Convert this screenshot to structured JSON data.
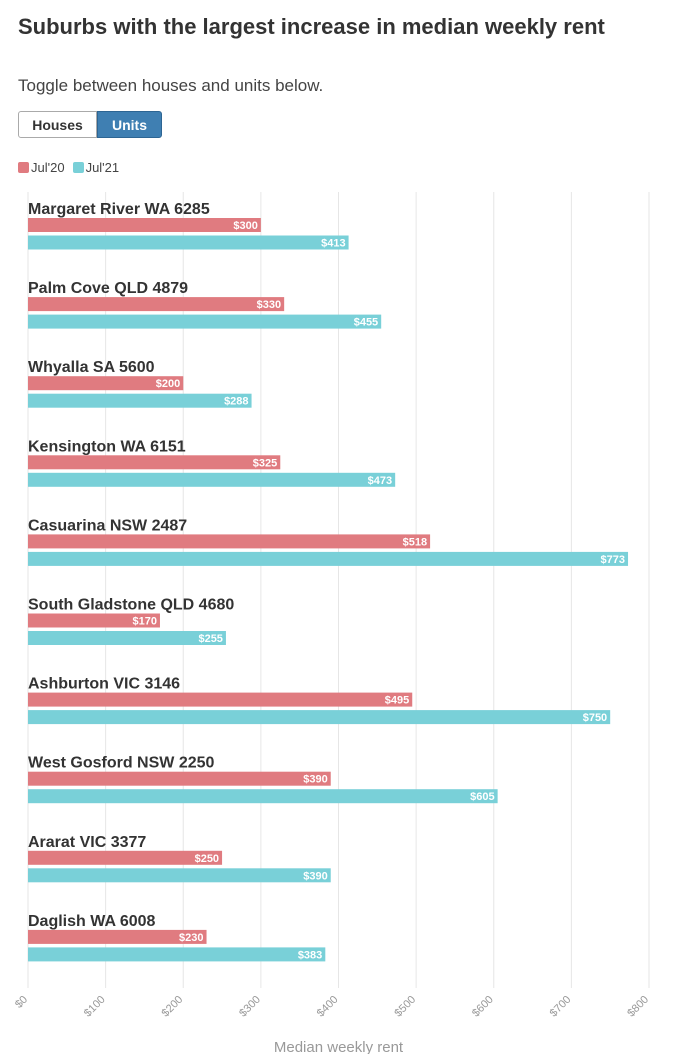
{
  "header": {
    "title": "Suburbs with the largest increase in median weekly rent",
    "subtitle": "Toggle between houses and units below."
  },
  "toggle": {
    "houses_label": "Houses",
    "units_label": "Units",
    "selected": "Units"
  },
  "colors": {
    "jul20": "#e07b80",
    "jul21": "#79d0d8",
    "active_button": "#3f7fb2",
    "gridline": "#e6e6e6"
  },
  "chart_data": {
    "type": "bar",
    "orientation": "horizontal",
    "xlabel": "Median weekly rent",
    "xlim": [
      0,
      800
    ],
    "xticks": [
      0,
      100,
      200,
      300,
      400,
      500,
      600,
      700,
      800
    ],
    "xtick_labels": [
      "$0",
      "$100",
      "$200",
      "$300",
      "$400",
      "$500",
      "$600",
      "$700",
      "$800"
    ],
    "legend_position": "top-left",
    "categories": [
      "Margaret River WA 6285",
      "Palm Cove QLD 4879",
      "Whyalla SA 5600",
      "Kensington WA 6151",
      "Casuarina NSW 2487",
      "South Gladstone QLD 4680",
      "Ashburton VIC 3146",
      "West Gosford NSW 2250",
      "Ararat VIC 3377",
      "Daglish WA 6008"
    ],
    "series": [
      {
        "name": "Jul'20",
        "values": [
          300,
          330,
          200,
          325,
          518,
          170,
          495,
          390,
          250,
          230
        ]
      },
      {
        "name": "Jul'21",
        "values": [
          413,
          455,
          288,
          473,
          773,
          255,
          750,
          605,
          390,
          383
        ]
      }
    ]
  }
}
